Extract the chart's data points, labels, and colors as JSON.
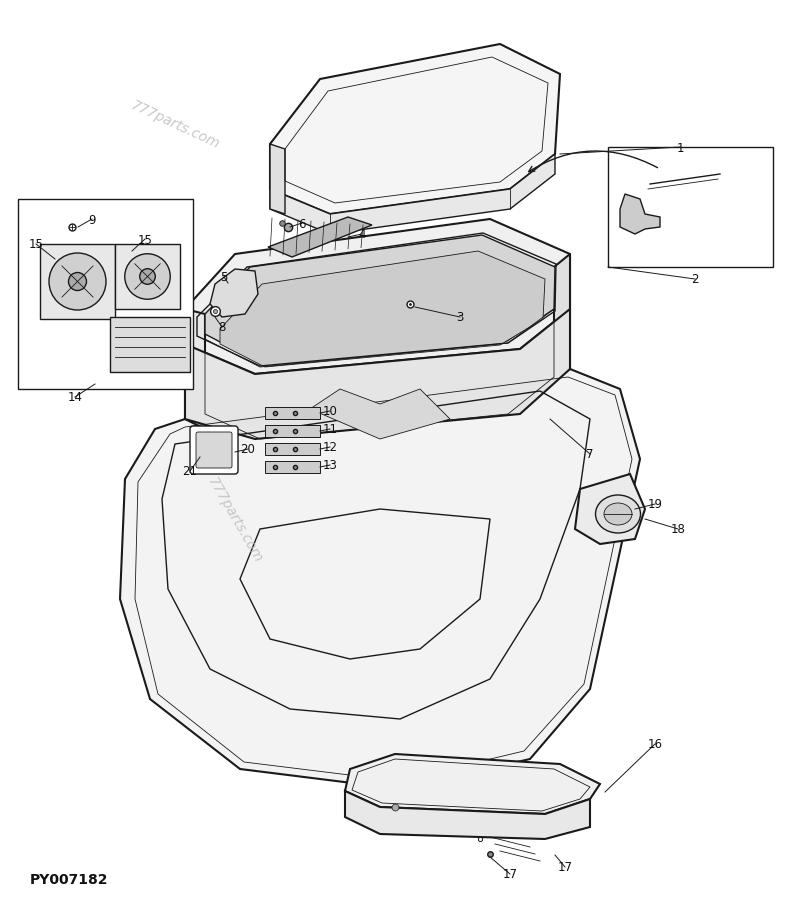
{
  "bg_color": "#ffffff",
  "line_color": "#1a1a1a",
  "text_color": "#111111",
  "watermark_color": "#bbbbbb",
  "fig_width": 8.0,
  "fig_height": 9.04,
  "diagram_id": "PY007182",
  "watermark1": "777parts.com",
  "watermark2": "777parts.com",
  "lw_main": 1.5,
  "lw_med": 1.0,
  "lw_thin": 0.6
}
